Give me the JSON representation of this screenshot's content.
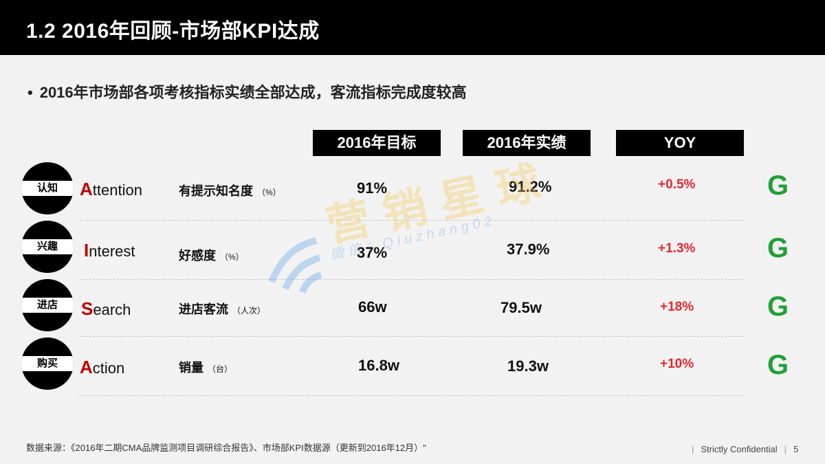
{
  "header": {
    "title": "1.2 2016年回顾-市场部KPI达成"
  },
  "subtitle": {
    "bullet": "•",
    "text": "2016年市场部各项考核指标实绩全部达成，客流指标完成度较高"
  },
  "columns": {
    "target": "2016年目标",
    "actual": "2016年实绩",
    "yoy": "YOY"
  },
  "rows": [
    {
      "stage": "认知",
      "word_cap": "A",
      "word_rest": "ttention",
      "metric": "有提示知名度",
      "unit": "（%）",
      "target": "91%",
      "actual": "91.2%",
      "yoy": "+0.5%",
      "grade": "G"
    },
    {
      "stage": "兴趣",
      "word_cap": "I",
      "word_rest": "nterest",
      "metric": "好感度",
      "unit": "（%）",
      "target": "37%",
      "actual": "37.9%",
      "yoy": "+1.3%",
      "grade": "G"
    },
    {
      "stage": "进店",
      "word_cap": "S",
      "word_rest": "earch",
      "metric": "进店客流",
      "unit": "（人次）",
      "target": "66w",
      "actual": "79.5w",
      "yoy": "+18%",
      "grade": "G"
    },
    {
      "stage": "购买",
      "word_cap": "A",
      "word_rest": "ction",
      "metric": "销量",
      "unit": "（台）",
      "target": "16.8w",
      "actual": "19.3w",
      "yoy": "+10%",
      "grade": "G"
    }
  ],
  "watermark": {
    "text": "营销星球",
    "sub": "微信：Qiuzhang02"
  },
  "footer": {
    "source": "数据来源：《2016年二期CMA品牌监测项目调研综合报告》、市场部KPI数据源（更新到2016年12月）\"",
    "confidential": "Strictly Confidential",
    "separator": "|",
    "page_number": "5"
  },
  "colors": {
    "accent_red": "#c00000",
    "yoy_red": "#e8262b",
    "grade_green": "#21a035"
  }
}
